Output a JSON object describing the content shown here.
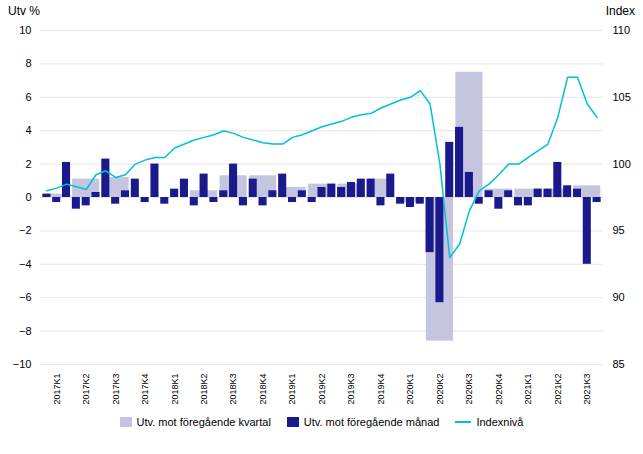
{
  "chart_data": {
    "type": "bar",
    "categories": [
      "2017K1",
      "2017K2",
      "2017K3",
      "2017K4",
      "2018K1",
      "2018K2",
      "2018K3",
      "2018K4",
      "2019K1",
      "2019K2",
      "2019K3",
      "2019K4",
      "2020K1",
      "2020K2",
      "2020K3",
      "2020K4",
      "2021K1",
      "2021K2",
      "2021K3"
    ],
    "series": [
      {
        "name": "Utv. mot föregående kvartal",
        "type": "bar",
        "color": "#c5c5e0",
        "values": [
          0.2,
          1.1,
          1.2,
          0.0,
          0.0,
          0.4,
          1.3,
          1.3,
          0.6,
          0.8,
          0.8,
          1.1,
          -0.3,
          -8.6,
          7.5,
          0.5,
          0.5,
          0.5,
          0.7
        ]
      },
      {
        "name": "Utv. mot föregående månad",
        "type": "bar",
        "color": "#1a1a8c",
        "values": [
          [
            0.2,
            -0.3,
            2.1
          ],
          [
            -0.7,
            -0.5,
            0.3
          ],
          [
            2.3,
            -0.4,
            0.4
          ],
          [
            1.1,
            -0.3,
            2.0
          ],
          [
            -0.4,
            0.5,
            1.1
          ],
          [
            -0.5,
            1.4,
            -0.3
          ],
          [
            0.4,
            2.0,
            -0.5
          ],
          [
            1.1,
            -0.5,
            0.4
          ],
          [
            1.4,
            -0.3,
            0.4
          ],
          [
            -0.3,
            0.6,
            0.8
          ],
          [
            0.6,
            0.9,
            1.1
          ],
          [
            1.1,
            -0.5,
            1.4
          ],
          [
            -0.4,
            -0.6,
            -0.4
          ],
          [
            -3.3,
            -6.3,
            3.3
          ],
          [
            4.2,
            1.5,
            -0.4
          ],
          [
            0.4,
            -0.7,
            0.4
          ],
          [
            -0.5,
            -0.5,
            0.5
          ],
          [
            0.5,
            2.1,
            0.7
          ],
          [
            0.5,
            -4.0,
            -0.3
          ]
        ]
      },
      {
        "name": "Indexnivå",
        "type": "line",
        "color": "#00bfdf",
        "axis": "y2",
        "values": [
          [
            98.0,
            98.2,
            98.5
          ],
          [
            98.3,
            98.1,
            99.2
          ],
          [
            99.5,
            99.0,
            99.2
          ],
          [
            100.0,
            100.3,
            100.5
          ],
          [
            100.5,
            101.2,
            101.5
          ],
          [
            101.8,
            102.0,
            102.2
          ],
          [
            102.5,
            102.3,
            102.0
          ],
          [
            101.8,
            101.6,
            101.5
          ],
          [
            101.5,
            102.0,
            102.2
          ],
          [
            102.5,
            102.8,
            103.0
          ],
          [
            103.2,
            103.5,
            103.7
          ],
          [
            103.8,
            104.2,
            104.5
          ],
          [
            104.8,
            105.0,
            105.5
          ],
          [
            104.5,
            100.0,
            93.0
          ],
          [
            94.0,
            96.5,
            98.0
          ],
          [
            98.5,
            99.2,
            100.0
          ],
          [
            100.0,
            100.5,
            101.0
          ],
          [
            101.5,
            103.5,
            106.5
          ],
          [
            106.5,
            104.5,
            103.5
          ]
        ]
      }
    ],
    "ylabel": "Utv %",
    "y2label": "Index",
    "ylim": [
      -10,
      10
    ],
    "yticks": [
      -10,
      -8,
      -6,
      -4,
      -2,
      0,
      2,
      4,
      6,
      8,
      10
    ],
    "y2lim": [
      85,
      110
    ],
    "y2ticks": [
      85,
      90,
      95,
      100,
      105,
      110
    ],
    "grid": true,
    "legend": "bottom"
  }
}
